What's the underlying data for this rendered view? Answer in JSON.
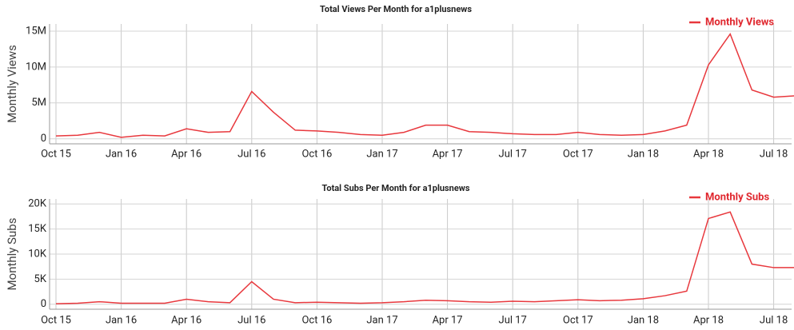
{
  "chart_data": [
    {
      "type": "line",
      "title": "Total Views Per Month for a1plusnews",
      "y_label": "Monthly Views",
      "categories": [
        "Oct 15",
        null,
        null,
        "Jan 16",
        null,
        null,
        "Apr 16",
        null,
        null,
        "Jul 16",
        null,
        null,
        "Oct 16",
        null,
        null,
        "Jan 17",
        null,
        null,
        "Apr 17",
        null,
        null,
        "Jul 17",
        null,
        null,
        "Oct 17",
        null,
        null,
        "Jan 18",
        null,
        null,
        "Apr 18",
        null,
        null,
        "Jul 18",
        null
      ],
      "series": [
        {
          "name": "Monthly Views",
          "color": "#e8383d",
          "values": [
            400000,
            500000,
            900000,
            200000,
            500000,
            400000,
            1400000,
            900000,
            1000000,
            6600000,
            3700000,
            1200000,
            1100000,
            900000,
            600000,
            500000,
            900000,
            1900000,
            1900000,
            1000000,
            900000,
            700000,
            600000,
            600000,
            900000,
            600000,
            500000,
            600000,
            1100000,
            1900000,
            10300000,
            14600000,
            6800000,
            5800000,
            6000000
          ]
        }
      ],
      "ylim": [
        -700000,
        16000000
      ],
      "yticks": [
        0,
        {
          "value": 5000000,
          "label": "5M"
        },
        {
          "value": 10000000,
          "label": "10M"
        },
        {
          "value": 15000000,
          "label": "15M"
        }
      ],
      "grid": true,
      "legend": "upper right"
    },
    {
      "type": "line",
      "title": "Total Subs Per Month for a1plusnews",
      "y_label": "Monthly Subs",
      "categories": [
        "Oct 15",
        null,
        null,
        "Jan 16",
        null,
        null,
        "Apr 16",
        null,
        null,
        "Jul 16",
        null,
        null,
        "Oct 16",
        null,
        null,
        "Jan 17",
        null,
        null,
        "Apr 17",
        null,
        null,
        "Jul 17",
        null,
        null,
        "Oct 17",
        null,
        null,
        "Jan 18",
        null,
        null,
        "Apr 18",
        null,
        null,
        "Jul 18",
        null
      ],
      "series": [
        {
          "name": "Monthly Subs",
          "color": "#e8383d",
          "values": [
            100,
            200,
            500,
            200,
            200,
            200,
            1000,
            500,
            300,
            4500,
            1000,
            300,
            400,
            300,
            200,
            300,
            500,
            800,
            700,
            500,
            400,
            600,
            500,
            700,
            900,
            700,
            800,
            1100,
            1700,
            2600,
            17100,
            18400,
            8000,
            7300,
            7300
          ]
        }
      ],
      "ylim": [
        -1000,
        21000
      ],
      "yticks": [
        0,
        {
          "value": 5000,
          "label": "5K"
        },
        {
          "value": 10000,
          "label": "10K"
        },
        {
          "value": 15000,
          "label": "15K"
        },
        {
          "value": 20000,
          "label": "20K"
        }
      ],
      "grid": true,
      "legend": "upper right"
    }
  ]
}
